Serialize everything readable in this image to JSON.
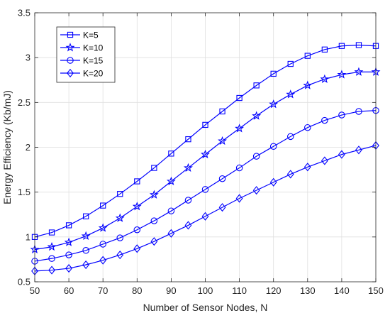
{
  "chart_data": {
    "type": "line",
    "xlabel": "Number of Sensor Nodes, N",
    "ylabel": "Energy Efficiency (Kb/mJ)",
    "xlim": [
      50,
      150
    ],
    "ylim": [
      0.5,
      3.5
    ],
    "xticks": [
      50,
      60,
      70,
      80,
      90,
      100,
      110,
      120,
      130,
      140,
      150
    ],
    "yticks": [
      0.5,
      1,
      1.5,
      2,
      2.5,
      3,
      3.5
    ],
    "ytick_labels": [
      "0.5",
      "1",
      "1.5",
      "2",
      "2.5",
      "3",
      "3.5"
    ],
    "grid": true,
    "legend_position": "top-left",
    "line_color": "#0000ff",
    "x": [
      50,
      55,
      60,
      65,
      70,
      75,
      80,
      85,
      90,
      95,
      100,
      105,
      110,
      115,
      120,
      125,
      130,
      135,
      140,
      145,
      150
    ],
    "series": [
      {
        "name": "K=5",
        "marker": "square",
        "values": [
          1.0,
          1.05,
          1.13,
          1.23,
          1.35,
          1.48,
          1.62,
          1.77,
          1.93,
          2.09,
          2.25,
          2.4,
          2.55,
          2.69,
          2.82,
          2.93,
          3.02,
          3.09,
          3.13,
          3.14,
          3.13
        ]
      },
      {
        "name": "K=10",
        "marker": "star",
        "values": [
          0.86,
          0.89,
          0.94,
          1.01,
          1.1,
          1.21,
          1.34,
          1.47,
          1.62,
          1.77,
          1.92,
          2.07,
          2.21,
          2.35,
          2.48,
          2.59,
          2.69,
          2.76,
          2.81,
          2.84,
          2.84
        ]
      },
      {
        "name": "K=15",
        "marker": "circle",
        "values": [
          0.73,
          0.76,
          0.8,
          0.85,
          0.92,
          0.99,
          1.08,
          1.18,
          1.29,
          1.41,
          1.53,
          1.65,
          1.77,
          1.9,
          2.01,
          2.12,
          2.22,
          2.3,
          2.36,
          2.4,
          2.41
        ]
      },
      {
        "name": "K=20",
        "marker": "diamond",
        "values": [
          0.62,
          0.63,
          0.65,
          0.69,
          0.74,
          0.8,
          0.87,
          0.95,
          1.04,
          1.13,
          1.23,
          1.33,
          1.43,
          1.52,
          1.61,
          1.7,
          1.78,
          1.85,
          1.92,
          1.97,
          2.02
        ]
      }
    ]
  }
}
